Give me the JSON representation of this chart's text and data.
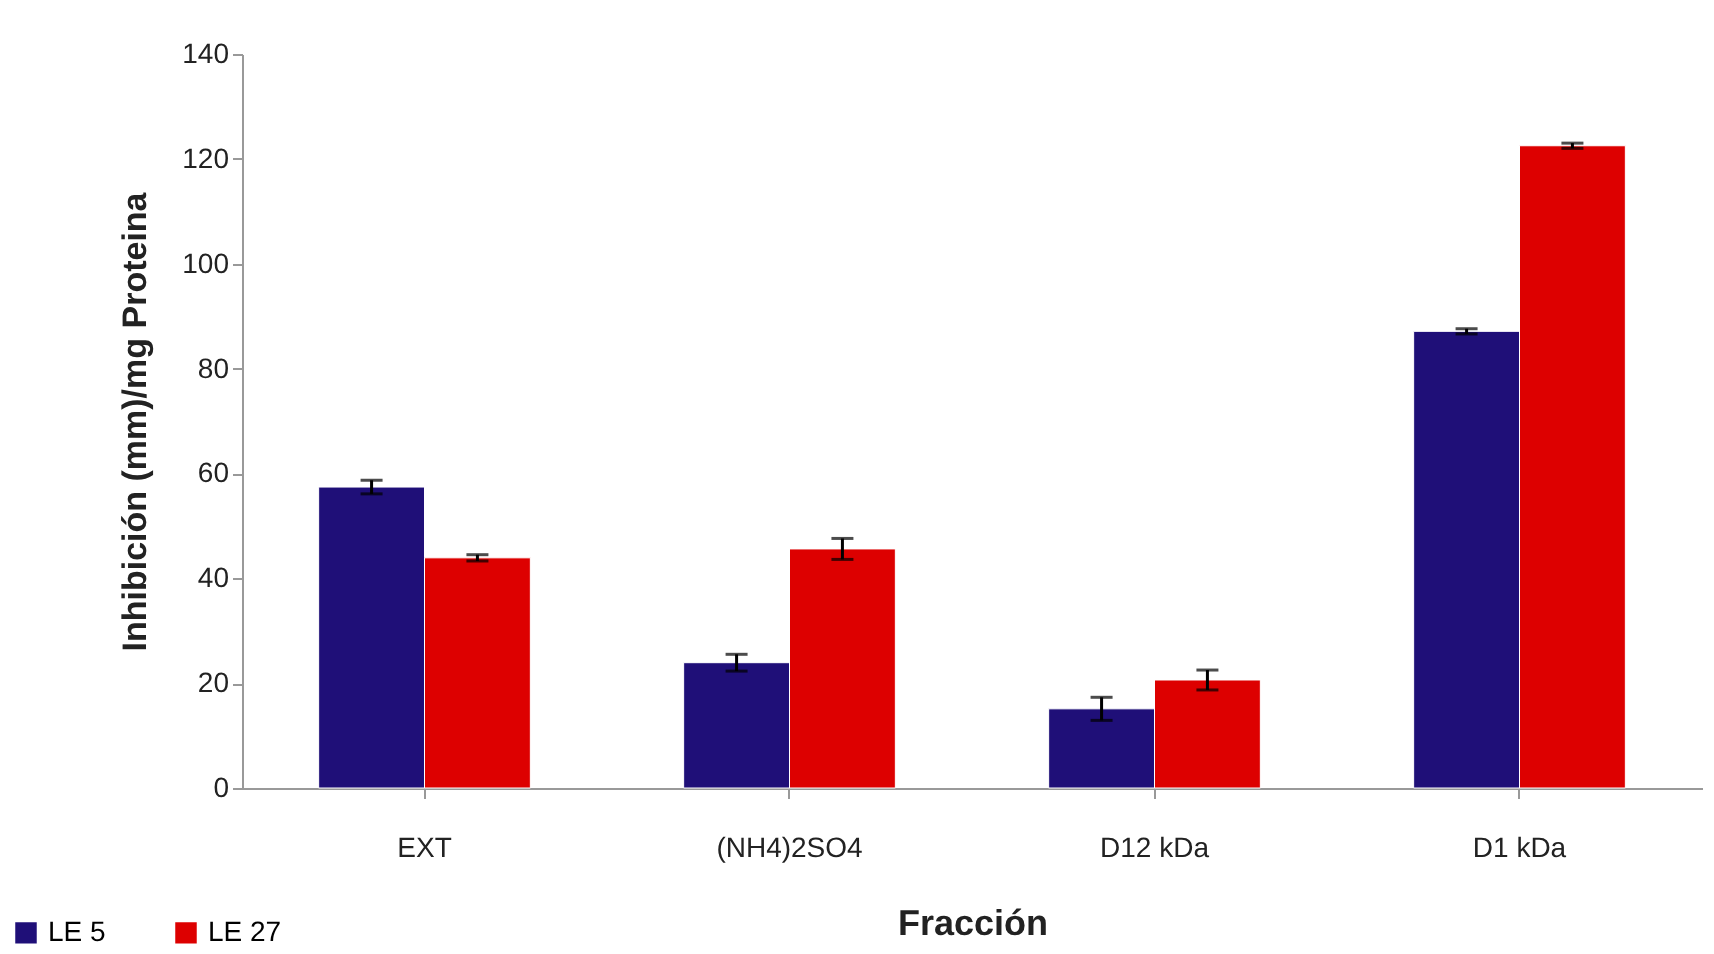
{
  "chart_data": {
    "type": "bar",
    "xlabel": "Fracción",
    "ylabel": "Inhibición (mm)/mg Proteina",
    "categories": [
      "EXT",
      "(NH4)2SO4",
      "D12 kDa",
      "D1 kDa"
    ],
    "series": [
      {
        "name": "LE 5",
        "color": "#1f0f78",
        "values": [
          57.4,
          23.9,
          15.1,
          87.1
        ],
        "errors": [
          1.3,
          1.6,
          2.2,
          0.5
        ]
      },
      {
        "name": "LE 27",
        "color": "#dd0000",
        "values": [
          43.9,
          45.6,
          20.6,
          122.5
        ],
        "errors": [
          0.6,
          2.0,
          1.9,
          0.5
        ]
      }
    ],
    "ylim": [
      0,
      140
    ],
    "yticks": [
      0,
      20,
      40,
      60,
      80,
      100,
      120,
      140
    ],
    "grid": false,
    "legend": "bottom left"
  }
}
